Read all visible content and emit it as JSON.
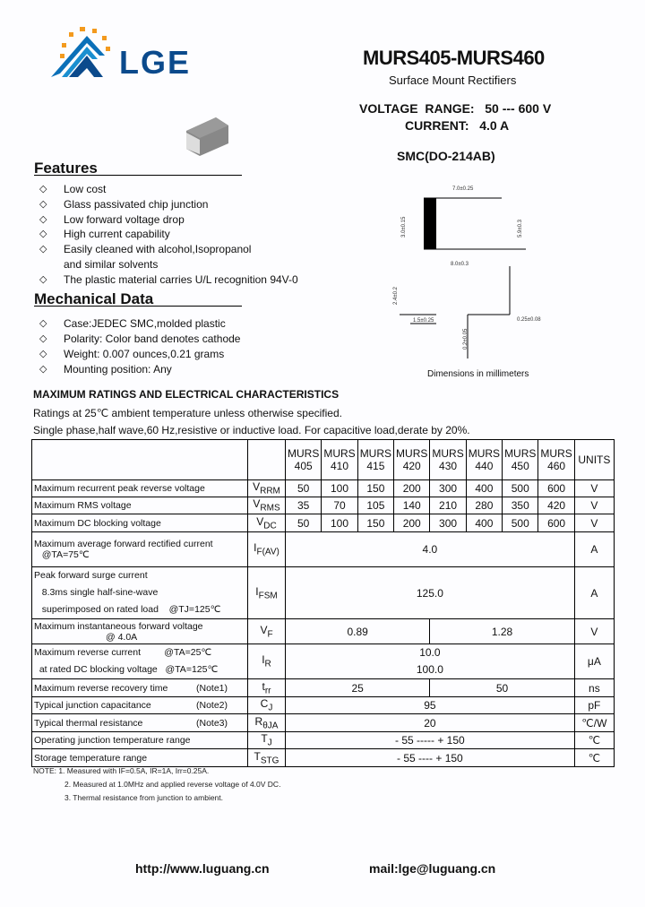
{
  "logo": {
    "text": "LGE",
    "colors": {
      "blue": "#0b4a8c",
      "orange": "#f39a1e"
    }
  },
  "header": {
    "title": "MURS405-MURS460",
    "subtitle": "Surface Mount Rectifiers",
    "voltage_range": "VOLTAGE  RANGE:   50 --- 600 V",
    "current": "CURRENT:   4.0 A",
    "package": "SMC(DO-214AB)"
  },
  "features": {
    "heading": "Features",
    "items": [
      "Low cost",
      "Glass passivated chip junction",
      "Low forward voltage drop",
      "High current capability",
      "Easily cleaned with alcohol,Isopropanol",
      "and similar solvents",
      "The plastic material carries U/L  recognition 94V-0"
    ]
  },
  "mechanical": {
    "heading": "Mechanical Data",
    "items": [
      "Case:JEDEC SMC,molded plastic",
      "Polarity: Color band denotes cathode",
      "Weight: 0.007 ounces,0.21 grams",
      "Mounting position: Any"
    ]
  },
  "diagram": {
    "dims": [
      "7.0±0.25",
      "3.0±0.15",
      "5.9±0.3",
      "8.0±0.3",
      "2.4±0.2",
      "1.5±0.25",
      "0.25±0.08",
      "0.2±0.05"
    ],
    "caption": "Dimensions in millimeters"
  },
  "ratings": {
    "heading": "MAXIMUM RATINGS AND ELECTRICAL CHARACTERISTICS",
    "line1": "Ratings at 25℃ ambient temperature unless otherwise specified.",
    "line2": "Single phase,half wave,60 Hz,resistive or inductive load. For capacitive load,derate by 20%."
  },
  "table": {
    "models": [
      [
        "MURS",
        "405"
      ],
      [
        "MURS",
        "410"
      ],
      [
        "MURS",
        "415"
      ],
      [
        "MURS",
        "420"
      ],
      [
        "MURS",
        "430"
      ],
      [
        "MURS",
        "440"
      ],
      [
        "MURS",
        "450"
      ],
      [
        "MURS",
        "460"
      ]
    ],
    "units_header": "UNITS",
    "rows": [
      {
        "label": "Maximum recurrent peak reverse voltage",
        "sym": "V",
        "sub": "RRM",
        "values": [
          "50",
          "100",
          "150",
          "200",
          "300",
          "400",
          "500",
          "600"
        ],
        "unit": "V"
      },
      {
        "label": "Maximum RMS voltage",
        "sym": "V",
        "sub": "RMS",
        "values": [
          "35",
          "70",
          "105",
          "140",
          "210",
          "280",
          "350",
          "420"
        ],
        "unit": "V"
      },
      {
        "label": "Maximum DC blocking voltage",
        "sym": "V",
        "sub": "DC",
        "values": [
          "50",
          "100",
          "150",
          "200",
          "300",
          "400",
          "500",
          "600"
        ],
        "unit": "V"
      }
    ],
    "ifav": {
      "label1": "Maximum average forward rectified current",
      "label2": "@TA=75℃",
      "sym": "I",
      "sub": "F(AV)",
      "value": "4.0",
      "unit": "A"
    },
    "ifsm": {
      "label1": "Peak forward surge current",
      "label2": "8.3ms single half-sine-wave",
      "label3": "superimposed on rated load",
      "label3b": "@TJ=125℃",
      "sym": "I",
      "sub": "FSM",
      "value": "125.0",
      "unit": "A"
    },
    "vf": {
      "label1": "Maximum instantaneous forward voltage",
      "label2": "@ 4.0A",
      "sym": "V",
      "sub": "F",
      "v1": "0.89",
      "v2": "1.28",
      "unit": "V"
    },
    "ir": {
      "label1": "Maximum  reverse current",
      "label1b": "@TA=25℃",
      "label2": "at rated DC blocking  voltage",
      "label2b": "@TA=125℃",
      "sym": "I",
      "sub": "R",
      "v1": "10.0",
      "v2": "100.0",
      "unit": "μA"
    },
    "trr": {
      "label": "Maximum  reverse  recovery  time",
      "note": "(Note1)",
      "sym": "t",
      "sub": "rr",
      "v1": "25",
      "v2": "50",
      "unit": "ns"
    },
    "cj": {
      "label": "Typical  junction  capacitance",
      "note": "(Note2)",
      "sym": "C",
      "sub": "J",
      "value": "95",
      "unit": "pF"
    },
    "rth": {
      "label": "Typical  thermal  resistance",
      "note": "(Note3)",
      "sym": "R",
      "sub": "θJA",
      "value": "20",
      "unit": "℃/W"
    },
    "tj": {
      "label": "Operating junction temperature range",
      "sym": "T",
      "sub": "J",
      "value": "- 55 ----- + 150",
      "unit": "℃"
    },
    "tstg": {
      "label": "Storage temperature range",
      "sym": "T",
      "sub": "STG",
      "value": "- 55 ---- + 150",
      "unit": "℃"
    }
  },
  "notes": [
    "NOTE:  1. Measured with IF=0.5A, IR=1A, Irr=0.25A.",
    "2. Measured at 1.0MHz and applied reverse voltage of 4.0V DC.",
    "3. Thermal resistance from junction to ambient."
  ],
  "footer": {
    "url": "http://www.luguang.cn",
    "mail": "mail:lge@luguang.cn"
  }
}
